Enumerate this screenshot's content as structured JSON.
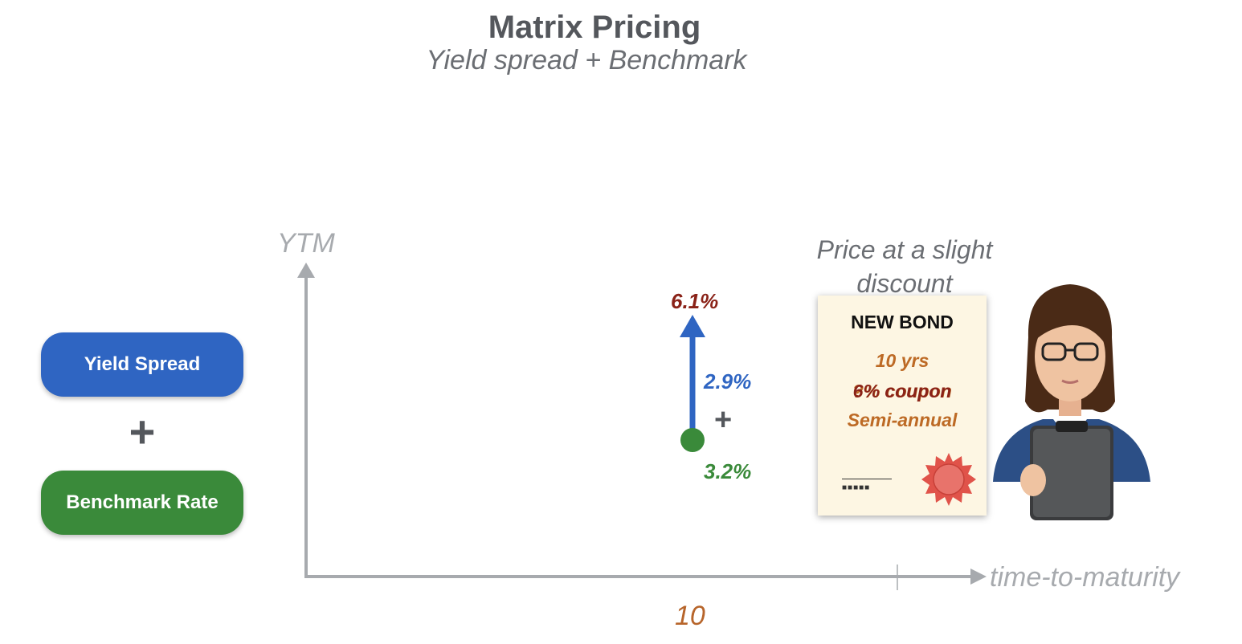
{
  "header": {
    "title": "Matrix Pricing",
    "subtitle": "Yield spread + Benchmark"
  },
  "legend": {
    "yield_spread_label": "Yield Spread",
    "plus_symbol": "+",
    "benchmark_label": "Benchmark Rate"
  },
  "chart": {
    "y_axis_label": "YTM",
    "x_axis_label": "time-to-maturity",
    "x_tick": "10",
    "total_yield": "6.1%",
    "yield_spread": "2.9%",
    "plus_symbol": "+",
    "benchmark_rate": "3.2%"
  },
  "note": {
    "line1": "Price at a slight",
    "line2": "discount"
  },
  "certificate": {
    "title": "NEW BOND",
    "maturity": "10 yrs",
    "coupon_underlay": "?% coupon",
    "coupon": "6% coupon",
    "frequency": "Semi-annual",
    "signature": "■■■■■"
  },
  "colors": {
    "spread_blue": "#2f65c2",
    "benchmark_green": "#3a8a3a",
    "total_red": "#8a2218",
    "axis_gray": "#a7aaae",
    "accent_orange": "#b7652b"
  },
  "icons": {
    "person": "analyst-with-clipboard-icon",
    "seal": "certificate-seal-icon"
  }
}
